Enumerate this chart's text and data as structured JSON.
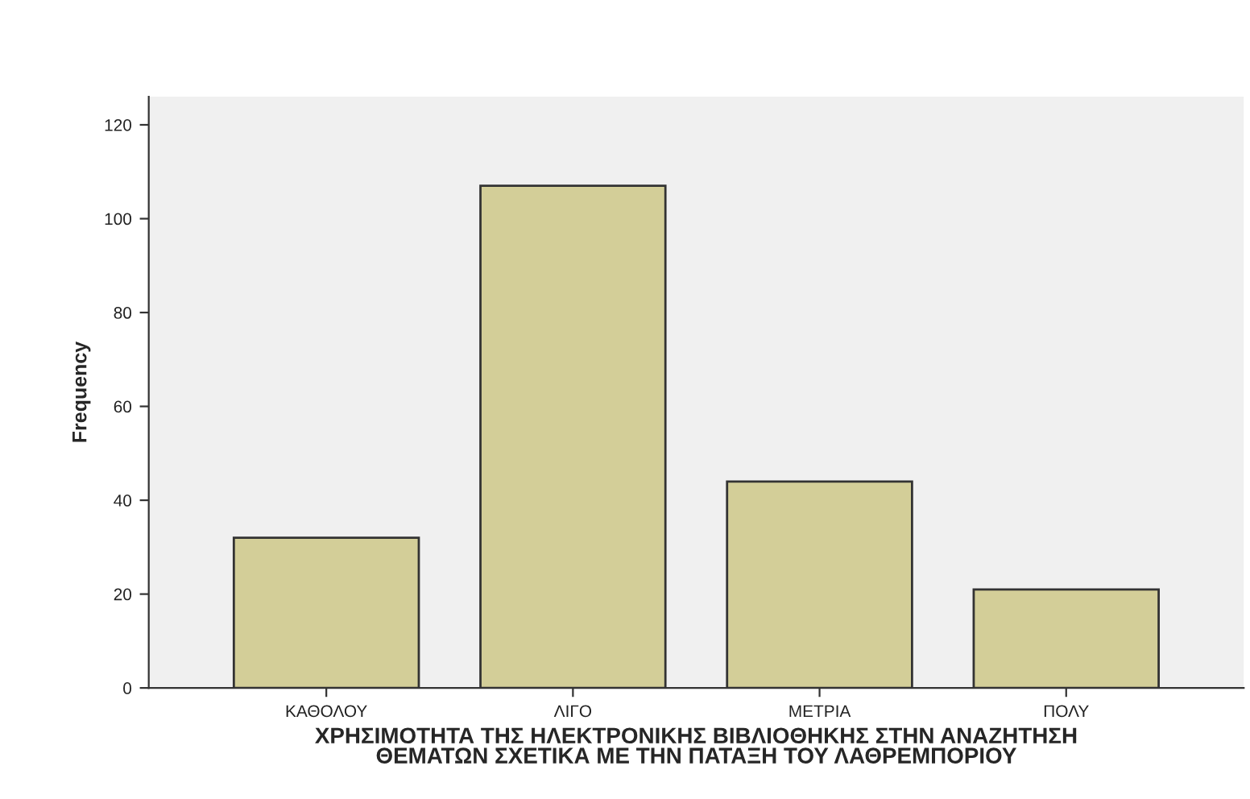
{
  "chart_data": {
    "type": "bar",
    "xlabel": "ΧΡΗΣΙΜΟΤΗΤΑ ΤΗΣ ΗΛΕΚΤΡΟΝΙΚΗΣ ΒΙΒΛΙΟΘΗΚΗΣ ΣΤΗΝ ΑΝΑΖΗΤΗΣΗ\nΘΕΜΑΤΩΝ ΣΧΕΤΙΚΑ ΜΕ ΤΗΝ ΠΑΤΑΞΗ ΤΟΥ ΛΑΘΡΕΜΠΟΡΙΟΥ",
    "ylabel": "Frequency",
    "categories": [
      "ΚΑΘΟΛΟΥ",
      "ΛΙΓΟ",
      "ΜΕΤΡΙΑ",
      "ΠΟΛΥ"
    ],
    "values": [
      32,
      107,
      44,
      21
    ],
    "color": "#d3ce98",
    "ylim": [
      0,
      126
    ],
    "yticks": [
      0,
      20,
      40,
      60,
      80,
      100,
      120
    ],
    "grid": false,
    "legend": false
  }
}
